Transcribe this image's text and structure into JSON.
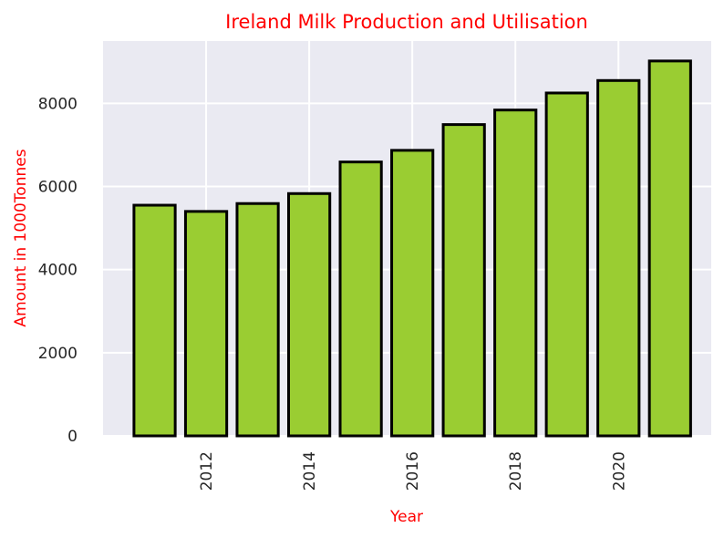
{
  "chart_data": {
    "type": "bar",
    "title": "Ireland Milk Production and Utilisation",
    "xlabel": "Year",
    "ylabel": "Amount in 1000Tonnes",
    "x": [
      2011,
      2012,
      2013,
      2014,
      2015,
      2016,
      2017,
      2018,
      2019,
      2020,
      2021
    ],
    "values": [
      5550,
      5400,
      5590,
      5830,
      6590,
      6870,
      7490,
      7840,
      8250,
      8550,
      9020
    ],
    "xticks": [
      2012,
      2014,
      2016,
      2018,
      2020
    ],
    "yticks": [
      0,
      2000,
      4000,
      6000,
      8000
    ],
    "xlim": [
      2010.0,
      2021.8
    ],
    "ylim": [
      0,
      9500
    ],
    "grid": true,
    "colors": {
      "bar_fill": "#9acd32",
      "bar_edge": "#000000",
      "plot_background": "#eaeaf2",
      "grid": "#ffffff",
      "title": "#ff0000",
      "axis_label": "#ff0000"
    }
  }
}
